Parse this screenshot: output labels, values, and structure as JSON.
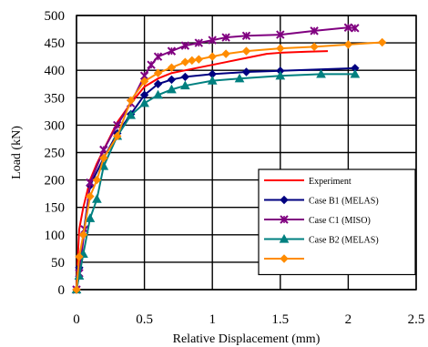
{
  "chart_data": {
    "type": "line",
    "title": "",
    "xlabel": "Relative Displacement (mm)",
    "ylabel": "Load (kN)",
    "xlim": [
      0,
      2.5
    ],
    "ylim": [
      0,
      500
    ],
    "x_ticks": [
      0,
      0.5,
      1,
      1.5,
      2,
      2.5
    ],
    "x_tick_labels": [
      "0",
      "0.5",
      "1",
      "1.5",
      "2",
      "2.5"
    ],
    "y_ticks": [
      0,
      50,
      100,
      150,
      200,
      250,
      300,
      350,
      400,
      450,
      500
    ],
    "y_tick_labels": [
      "0",
      "50",
      "100",
      "150",
      "200",
      "250",
      "300",
      "350",
      "400",
      "450",
      "500"
    ],
    "grid": true,
    "legend_position": "bottom-right",
    "series": [
      {
        "name": "Experiment",
        "color": "#ff0000",
        "marker": "none",
        "points": [
          [
            0,
            0
          ],
          [
            0.01,
            60
          ],
          [
            0.02,
            110
          ],
          [
            0.05,
            150
          ],
          [
            0.1,
            200
          ],
          [
            0.15,
            230
          ],
          [
            0.2,
            255
          ],
          [
            0.3,
            305
          ],
          [
            0.4,
            340
          ],
          [
            0.5,
            370
          ],
          [
            0.6,
            385
          ],
          [
            0.7,
            395
          ],
          [
            0.8,
            400
          ],
          [
            0.9,
            405
          ],
          [
            1.0,
            410
          ],
          [
            1.1,
            415
          ],
          [
            1.2,
            420
          ],
          [
            1.3,
            425
          ],
          [
            1.4,
            430
          ],
          [
            1.5,
            432
          ],
          [
            1.7,
            434
          ],
          [
            1.85,
            435
          ]
        ]
      },
      {
        "name": "Case B1 (MELAS)",
        "color": "#000080",
        "marker": "diamond",
        "points": [
          [
            0,
            0
          ],
          [
            0.02,
            40
          ],
          [
            0.05,
            100
          ],
          [
            0.1,
            190
          ],
          [
            0.2,
            240
          ],
          [
            0.3,
            285
          ],
          [
            0.4,
            320
          ],
          [
            0.5,
            355
          ],
          [
            0.6,
            375
          ],
          [
            0.7,
            383
          ],
          [
            0.8,
            388
          ],
          [
            1.0,
            393
          ],
          [
            1.25,
            397
          ],
          [
            1.5,
            399
          ],
          [
            2.05,
            404
          ]
        ]
      },
      {
        "name": "Case C1 (MISO)",
        "color": "#800080",
        "marker": "x",
        "points": [
          [
            0,
            0
          ],
          [
            0.02,
            30
          ],
          [
            0.06,
            110
          ],
          [
            0.1,
            195
          ],
          [
            0.2,
            255
          ],
          [
            0.3,
            300
          ],
          [
            0.4,
            340
          ],
          [
            0.5,
            390
          ],
          [
            0.55,
            410
          ],
          [
            0.6,
            425
          ],
          [
            0.7,
            435
          ],
          [
            0.8,
            445
          ],
          [
            0.9,
            450
          ],
          [
            1.0,
            455
          ],
          [
            1.1,
            460
          ],
          [
            1.25,
            463
          ],
          [
            1.5,
            465
          ],
          [
            1.75,
            472
          ],
          [
            2.0,
            478
          ],
          [
            2.05,
            477
          ]
        ]
      },
      {
        "name": "Case B2 (MELAS)",
        "color": "#008080",
        "marker": "triangle",
        "points": [
          [
            0,
            0
          ],
          [
            0.02,
            25
          ],
          [
            0.05,
            65
          ],
          [
            0.1,
            130
          ],
          [
            0.15,
            165
          ],
          [
            0.2,
            225
          ],
          [
            0.3,
            280
          ],
          [
            0.4,
            318
          ],
          [
            0.5,
            340
          ],
          [
            0.6,
            355
          ],
          [
            0.7,
            365
          ],
          [
            0.8,
            372
          ],
          [
            1.0,
            381
          ],
          [
            1.2,
            385
          ],
          [
            1.5,
            390
          ],
          [
            1.8,
            393
          ],
          [
            2.05,
            393
          ]
        ]
      },
      {
        "name": "",
        "color": "#ff8c00",
        "marker": "diamond",
        "points": [
          [
            0,
            0
          ],
          [
            0.02,
            60
          ],
          [
            0.05,
            100
          ],
          [
            0.1,
            170
          ],
          [
            0.15,
            200
          ],
          [
            0.2,
            240
          ],
          [
            0.3,
            280
          ],
          [
            0.4,
            345
          ],
          [
            0.5,
            380
          ],
          [
            0.6,
            395
          ],
          [
            0.7,
            405
          ],
          [
            0.8,
            415
          ],
          [
            0.85,
            418
          ],
          [
            0.9,
            420
          ],
          [
            1.0,
            425
          ],
          [
            1.1,
            430
          ],
          [
            1.25,
            435
          ],
          [
            1.5,
            440
          ],
          [
            1.75,
            443
          ],
          [
            2.0,
            447
          ],
          [
            2.25,
            451
          ]
        ]
      }
    ]
  }
}
